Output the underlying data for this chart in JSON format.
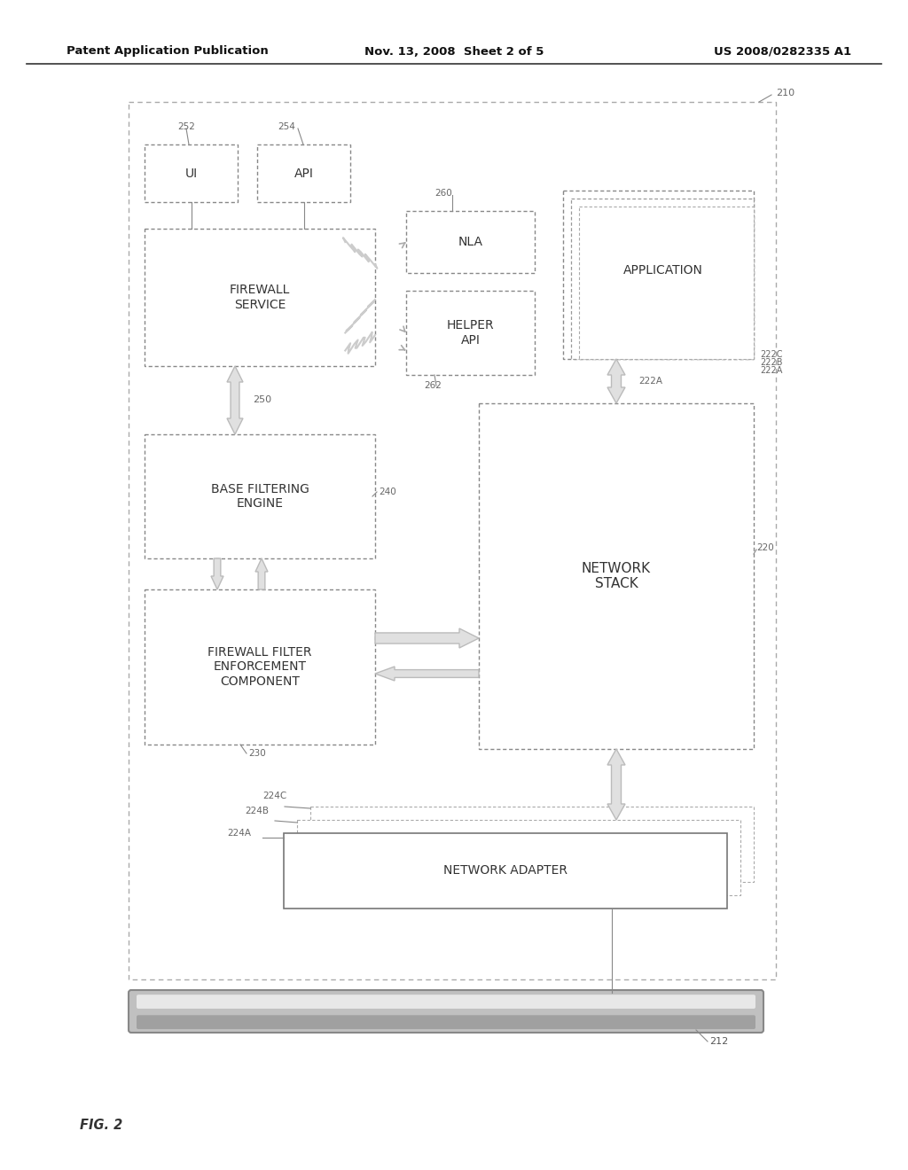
{
  "title_left": "Patent Application Publication",
  "title_mid": "Nov. 13, 2008  Sheet 2 of 5",
  "title_right": "US 2008/0282335 A1",
  "fig_label": "FIG. 2",
  "bg_color": "#ffffff"
}
